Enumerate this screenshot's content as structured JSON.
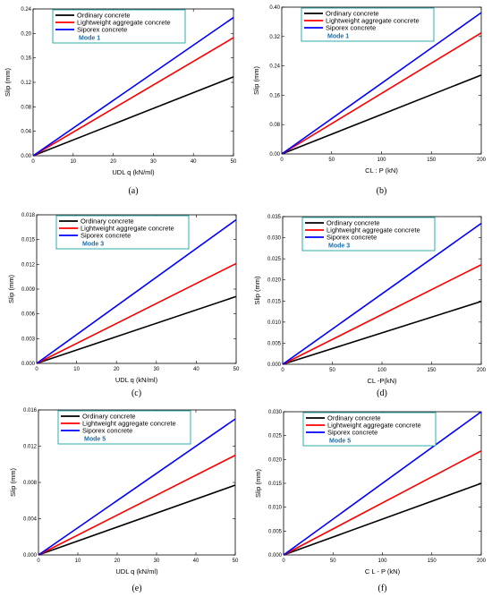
{
  "chart_data": [
    {
      "type": "line",
      "caption": "(a)",
      "xlabel": "UDL q (kN/ml)",
      "ylabel": "Slip (mm)",
      "xlim": [
        0,
        50
      ],
      "ylim": [
        0,
        0.24
      ],
      "xticks": [
        "0",
        "10",
        "20",
        "30",
        "40",
        "50"
      ],
      "xtickValues": [
        0,
        10,
        20,
        30,
        40,
        50
      ],
      "yticks": [
        "0.00",
        "0.04",
        "0.08",
        "0.12",
        "0.16",
        "0.20",
        "0.24"
      ],
      "ytickValues": [
        0,
        0.04,
        0.08,
        0.12,
        0.16,
        0.2,
        0.24
      ],
      "legend_position": "top-left",
      "mode_label": "Mode 1",
      "grid": false,
      "x": [
        0,
        50
      ],
      "series": [
        {
          "name": "Ordinary concrete",
          "color": "#000000",
          "values": [
            0,
            0.129
          ]
        },
        {
          "name": "Lightweight aggregate concrete",
          "color": "#ff0000",
          "values": [
            0,
            0.193
          ]
        },
        {
          "name": "Siporex concrete",
          "color": "#0000ff",
          "values": [
            0,
            0.226
          ]
        }
      ]
    },
    {
      "type": "line",
      "caption": "(b)",
      "xlabel": "CL : P (kN)",
      "ylabel": "Slip (mm)",
      "xlim": [
        0,
        200
      ],
      "ylim": [
        0,
        0.4
      ],
      "xticks": [
        "0",
        "50",
        "100",
        "150",
        "200"
      ],
      "xtickValues": [
        0,
        50,
        100,
        150,
        200
      ],
      "yticks": [
        "0.00",
        "0.08",
        "0.16",
        "0.24",
        "0.32",
        "0.40"
      ],
      "ytickValues": [
        0,
        0.08,
        0.16,
        0.24,
        0.32,
        0.4
      ],
      "legend_position": "top-left",
      "mode_label": "Mode 1",
      "grid": false,
      "x": [
        0,
        200
      ],
      "series": [
        {
          "name": "Ordinary concrete",
          "color": "#000000",
          "values": [
            0,
            0.215
          ]
        },
        {
          "name": "Lightweight aggregate concrete",
          "color": "#ff0000",
          "values": [
            0,
            0.33
          ]
        },
        {
          "name": "Siporex concrete",
          "color": "#0000ff",
          "values": [
            0,
            0.385
          ]
        }
      ]
    },
    {
      "type": "line",
      "caption": "(c)",
      "xlabel": "UDL q (kN/ml)",
      "ylabel": "Slip (mm)",
      "xlim": [
        0,
        50
      ],
      "ylim": [
        0,
        0.018
      ],
      "xticks": [
        "0",
        "10",
        "20",
        "30",
        "40",
        "50"
      ],
      "xtickValues": [
        0,
        10,
        20,
        30,
        40,
        50
      ],
      "yticks": [
        "0.000",
        "0.003",
        "0.006",
        "0.009",
        "0.012",
        "0.015",
        "0.018"
      ],
      "ytickValues": [
        0,
        0.003,
        0.006,
        0.009,
        0.012,
        0.015,
        0.018
      ],
      "legend_position": "top-left",
      "mode_label": "Mode 3",
      "grid": false,
      "x": [
        0,
        50
      ],
      "series": [
        {
          "name": "Ordinary concrete",
          "color": "#000000",
          "values": [
            0,
            0.0081
          ]
        },
        {
          "name": "Lightweight aggregate concrete",
          "color": "#ff0000",
          "values": [
            0,
            0.0121
          ]
        },
        {
          "name": "Siporex concrete",
          "color": "#0000ff",
          "values": [
            0,
            0.0174
          ]
        }
      ]
    },
    {
      "type": "line",
      "caption": "(d)",
      "xlabel": "CL -P(kN)",
      "ylabel": "Slip (mm)",
      "xlim": [
        0,
        200
      ],
      "ylim": [
        0,
        0.035
      ],
      "xticks": [
        "0",
        "50",
        "100",
        "150",
        "200"
      ],
      "xtickValues": [
        0,
        50,
        100,
        150,
        200
      ],
      "yticks": [
        "0.000",
        "0.005",
        "0.010",
        "0.015",
        "0.020",
        "0.025",
        "0.030",
        "0.035"
      ],
      "ytickValues": [
        0,
        0.005,
        0.01,
        0.015,
        0.02,
        0.025,
        0.03,
        0.035
      ],
      "legend_position": "top-left",
      "mode_label": "Mode 3",
      "grid": false,
      "x": [
        0,
        200
      ],
      "series": [
        {
          "name": "Ordinary concrete",
          "color": "#000000",
          "values": [
            0,
            0.0149
          ]
        },
        {
          "name": "Lightweight aggregate concrete",
          "color": "#ff0000",
          "values": [
            0,
            0.0236
          ]
        },
        {
          "name": "Siporex concrete",
          "color": "#0000ff",
          "values": [
            0,
            0.0334
          ]
        }
      ]
    },
    {
      "type": "line",
      "caption": "(e)",
      "xlabel": "UDL q (kN/ml)",
      "ylabel": "Slip (mm)",
      "xlim": [
        0,
        50
      ],
      "ylim": [
        0,
        0.016
      ],
      "xticks": [
        "0",
        "10",
        "20",
        "30",
        "40",
        "50"
      ],
      "xtickValues": [
        0,
        10,
        20,
        30,
        40,
        50
      ],
      "yticks": [
        "0.000",
        "0.004",
        "0.008",
        "0.012",
        "0.016"
      ],
      "ytickValues": [
        0,
        0.004,
        0.008,
        0.012,
        0.016
      ],
      "legend_position": "top-left",
      "mode_label": "Mode 5",
      "grid": false,
      "x": [
        0,
        50
      ],
      "series": [
        {
          "name": "Ordinary concrete",
          "color": "#000000",
          "values": [
            0,
            0.0077
          ]
        },
        {
          "name": "Lightweight aggregate concrete",
          "color": "#ff0000",
          "values": [
            0,
            0.011
          ]
        },
        {
          "name": "Siporex concrete",
          "color": "#0000ff",
          "values": [
            0,
            0.015
          ]
        }
      ]
    },
    {
      "type": "line",
      "caption": "(f)",
      "xlabel": "C L - P (kN)",
      "ylabel": "Slip (mm)",
      "xlim": [
        0,
        200
      ],
      "ylim": [
        0,
        0.03
      ],
      "xticks": [
        "0",
        "50",
        "100",
        "150",
        "200"
      ],
      "xtickValues": [
        0,
        50,
        100,
        150,
        200
      ],
      "yticks": [
        "0.000",
        "0.005",
        "0.010",
        "0.015",
        "0.020",
        "0.025",
        "0.030"
      ],
      "ytickValues": [
        0,
        0.005,
        0.01,
        0.015,
        0.02,
        0.025,
        0.03
      ],
      "legend_position": "top-left",
      "mode_label": "Mode 5",
      "grid": false,
      "x": [
        0,
        200
      ],
      "series": [
        {
          "name": "Ordinary concrete",
          "color": "#000000",
          "values": [
            0,
            0.015
          ]
        },
        {
          "name": "Lightweight aggregate concrete",
          "color": "#ff0000",
          "values": [
            0,
            0.0218
          ]
        },
        {
          "name": "Siporex concrete",
          "color": "#0000ff",
          "values": [
            0,
            0.03
          ]
        }
      ]
    }
  ],
  "colors": {
    "legend_border": "#18a3a3",
    "mode_text": "#1a6fa8"
  }
}
